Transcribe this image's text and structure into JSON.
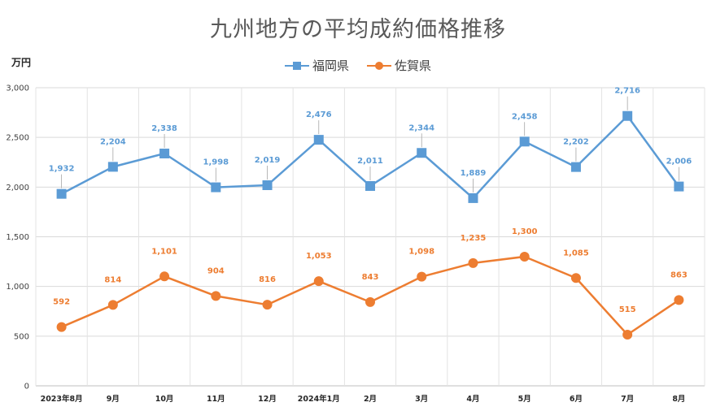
{
  "chart_data": {
    "type": "line",
    "title": "九州地方の平均成約価格推移",
    "ylabel": "万円",
    "xlabel": "",
    "ylim": [
      0,
      3000
    ],
    "yticks": [
      "0",
      "500",
      "1,000",
      "1,500",
      "2,000",
      "2,500",
      "3,000"
    ],
    "grid": true,
    "legend_position": "top",
    "categories": [
      "2023年8月",
      "9月",
      "10月",
      "11月",
      "12月",
      "2024年1月",
      "2月",
      "3月",
      "4月",
      "5月",
      "6月",
      "7月",
      "8月"
    ],
    "series": [
      {
        "name": "福岡県",
        "color": "#5b9bd5",
        "marker": "square",
        "values": [
          1932,
          2204,
          2338,
          1998,
          2019,
          2476,
          2011,
          2344,
          1889,
          2458,
          2202,
          2716,
          2006
        ],
        "labels": [
          "1,932",
          "2,204",
          "2,338",
          "1,998",
          "2,019",
          "2,476",
          "2,011",
          "2,344",
          "1,889",
          "2,458",
          "2,202",
          "2,716",
          "2,006"
        ]
      },
      {
        "name": "佐賀県",
        "color": "#ed7d31",
        "marker": "circle",
        "values": [
          592,
          814,
          1101,
          904,
          816,
          1053,
          843,
          1098,
          1235,
          1300,
          1085,
          515,
          863
        ],
        "labels": [
          "592",
          "814",
          "1,101",
          "904",
          "816",
          "1,053",
          "843",
          "1,098",
          "1,235",
          "1,300",
          "1,085",
          "515",
          "863"
        ]
      }
    ]
  }
}
